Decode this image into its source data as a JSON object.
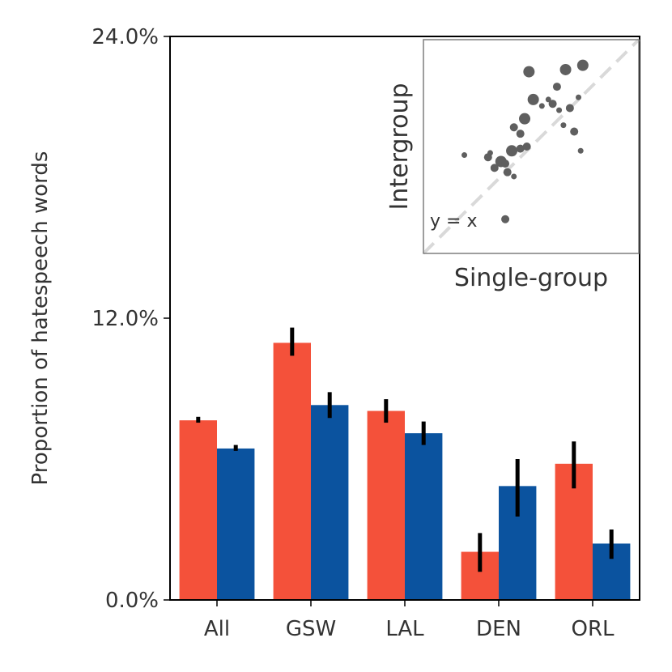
{
  "chart_data": [
    {
      "type": "bar",
      "title": "",
      "xlabel": "",
      "ylabel": "Proportion of hatespeech words",
      "ylim": [
        0,
        24
      ],
      "y_tick_values": [
        0,
        12,
        24
      ],
      "y_tick_labels": [
        "0.0%",
        "12.0%",
        "24.0%"
      ],
      "categories": [
        "All",
        "GSW",
        "LAL",
        "DEN",
        "ORL"
      ],
      "series": [
        {
          "name": "Single-group",
          "color": "#f4513a",
          "values": [
            7.65,
            10.95,
            8.05,
            2.05,
            5.8
          ],
          "error_low": [
            7.55,
            10.4,
            7.55,
            1.2,
            4.75
          ],
          "error_high": [
            7.8,
            11.6,
            8.55,
            2.85,
            6.75
          ]
        },
        {
          "name": "Intergroup",
          "color": "#0b539f",
          "values": [
            6.45,
            8.3,
            7.1,
            4.85,
            2.4
          ],
          "error_low": [
            6.35,
            7.75,
            6.6,
            3.55,
            1.75
          ],
          "error_high": [
            6.6,
            8.85,
            7.6,
            6.0,
            3.0
          ]
        }
      ]
    },
    {
      "type": "scatter",
      "title": "",
      "xlabel": "Single-group",
      "ylabel": "Intergroup",
      "xlim": [
        0,
        1
      ],
      "ylim": [
        0,
        1
      ],
      "reference_line": {
        "label": "y = x",
        "color": "#d9d9d9"
      },
      "point_color": "#5f5f5f",
      "points": [
        {
          "x": 0.49,
          "y": 0.85,
          "size": 3
        },
        {
          "x": 0.66,
          "y": 0.86,
          "size": 3
        },
        {
          "x": 0.74,
          "y": 0.88,
          "size": 3
        },
        {
          "x": 0.51,
          "y": 0.72,
          "size": 3
        },
        {
          "x": 0.47,
          "y": 0.63,
          "size": 3
        },
        {
          "x": 0.62,
          "y": 0.78,
          "size": 2
        },
        {
          "x": 0.6,
          "y": 0.7,
          "size": 2
        },
        {
          "x": 0.42,
          "y": 0.59,
          "size": 2
        },
        {
          "x": 0.45,
          "y": 0.56,
          "size": 2
        },
        {
          "x": 0.41,
          "y": 0.48,
          "size": 3
        },
        {
          "x": 0.36,
          "y": 0.43,
          "size": 3
        },
        {
          "x": 0.38,
          "y": 0.42,
          "size": 2
        },
        {
          "x": 0.33,
          "y": 0.4,
          "size": 2
        },
        {
          "x": 0.3,
          "y": 0.45,
          "size": 2
        },
        {
          "x": 0.45,
          "y": 0.49,
          "size": 2
        },
        {
          "x": 0.48,
          "y": 0.5,
          "size": 2
        },
        {
          "x": 0.39,
          "y": 0.38,
          "size": 2
        },
        {
          "x": 0.42,
          "y": 0.36,
          "size": 1
        },
        {
          "x": 0.55,
          "y": 0.69,
          "size": 1
        },
        {
          "x": 0.58,
          "y": 0.72,
          "size": 1
        },
        {
          "x": 0.68,
          "y": 0.68,
          "size": 2
        },
        {
          "x": 0.65,
          "y": 0.6,
          "size": 1
        },
        {
          "x": 0.7,
          "y": 0.57,
          "size": 2
        },
        {
          "x": 0.73,
          "y": 0.48,
          "size": 1
        },
        {
          "x": 0.63,
          "y": 0.67,
          "size": 1
        },
        {
          "x": 0.72,
          "y": 0.73,
          "size": 1
        },
        {
          "x": 0.19,
          "y": 0.46,
          "size": 1
        },
        {
          "x": 0.31,
          "y": 0.47,
          "size": 1
        },
        {
          "x": 0.38,
          "y": 0.16,
          "size": 2
        }
      ]
    }
  ]
}
